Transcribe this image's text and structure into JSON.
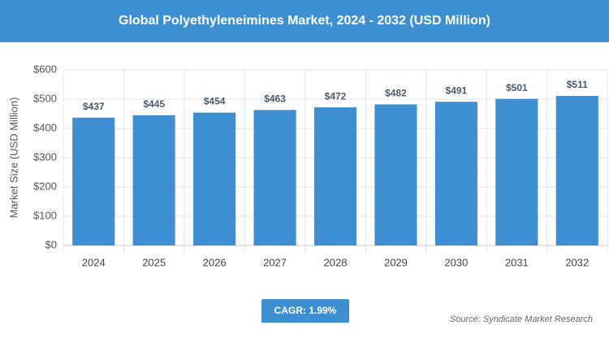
{
  "chart_data": {
    "type": "bar",
    "title": "Global Polyethyleneimines Market, 2024 - 2032 (USD Million)",
    "y_label": "Market Size (USD Million)",
    "categories": [
      "2024",
      "2025",
      "2026",
      "2027",
      "2028",
      "2029",
      "2030",
      "2031",
      "2032"
    ],
    "values": [
      437,
      445,
      454,
      463,
      472,
      482,
      491,
      501,
      511
    ],
    "value_labels": [
      "$437",
      "$445",
      "$454",
      "$463",
      "$472",
      "$482",
      "$491",
      "$501",
      "$511"
    ],
    "color": "#3d8fd1",
    "ylim": [
      0,
      600
    ],
    "yticks": [
      {
        "value": 0,
        "label": "$0"
      },
      {
        "value": 100,
        "label": "$100"
      },
      {
        "value": 200,
        "label": "$200"
      },
      {
        "value": 300,
        "label": "$300"
      },
      {
        "value": 400,
        "label": "$400"
      },
      {
        "value": 500,
        "label": "$500"
      },
      {
        "value": 600,
        "label": "$600"
      }
    ],
    "grid": true,
    "cagr": "CAGR: 1.99%",
    "source": "Source: Syndicate Market Research"
  }
}
